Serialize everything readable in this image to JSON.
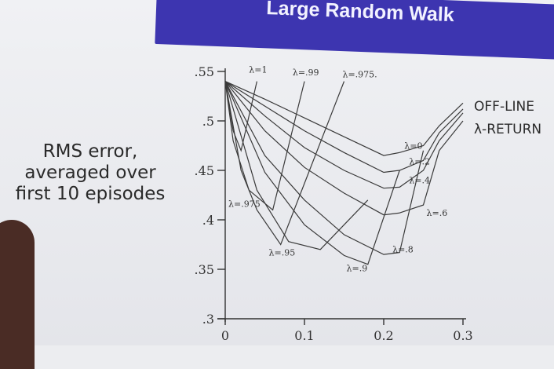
{
  "slide": {
    "title": "Large Random Walk",
    "ylabel": "RMS error,\naveraged over\nfirst 10 episodes",
    "legend_title_1": "OFF-LINE",
    "legend_title_2": "λ-RETURN"
  },
  "chart_data": {
    "type": "line",
    "title": "",
    "xlabel": "",
    "ylabel": "RMS error, averaged over first 10 episodes",
    "xlim": [
      0,
      0.3
    ],
    "ylim": [
      0.3,
      0.55
    ],
    "x_ticks": [
      {
        "value": 0,
        "label": "0"
      },
      {
        "value": 0.1,
        "label": "0.1"
      },
      {
        "value": 0.2,
        "label": "0.2"
      },
      {
        "value": 0.3,
        "label": "0.3"
      }
    ],
    "y_ticks": [
      {
        "value": 0.3,
        "label": ".3"
      },
      {
        "value": 0.35,
        "label": ".35"
      },
      {
        "value": 0.4,
        "label": ".4"
      },
      {
        "value": 0.45,
        "label": ".45"
      },
      {
        "value": 0.5,
        "label": ".5"
      },
      {
        "value": 0.55,
        "label": ".55"
      }
    ],
    "grid": false,
    "series": [
      {
        "name": "λ=0",
        "x": [
          0,
          0.05,
          0.1,
          0.15,
          0.2,
          0.22,
          0.25,
          0.27,
          0.3
        ],
        "y": [
          0.54,
          0.522,
          0.503,
          0.484,
          0.465,
          0.468,
          0.475,
          0.495,
          0.518
        ]
      },
      {
        "name": "λ=.2",
        "x": [
          0,
          0.05,
          0.1,
          0.15,
          0.2,
          0.22,
          0.25,
          0.27,
          0.3
        ],
        "y": [
          0.54,
          0.515,
          0.49,
          0.468,
          0.448,
          0.45,
          0.46,
          0.488,
          0.512
        ]
      },
      {
        "name": "λ=.4",
        "x": [
          0,
          0.05,
          0.1,
          0.15,
          0.2,
          0.22,
          0.25,
          0.27,
          0.3
        ],
        "y": [
          0.54,
          0.505,
          0.473,
          0.45,
          0.432,
          0.433,
          0.45,
          0.48,
          0.508
        ]
      },
      {
        "name": "λ=.6",
        "x": [
          0,
          0.05,
          0.1,
          0.15,
          0.2,
          0.22,
          0.25,
          0.27,
          0.3
        ],
        "y": [
          0.54,
          0.49,
          0.453,
          0.427,
          0.405,
          0.407,
          0.415,
          0.47,
          0.5
        ]
      },
      {
        "name": "λ=.8",
        "x": [
          0,
          0.05,
          0.1,
          0.15,
          0.2,
          0.22,
          0.25
        ],
        "y": [
          0.54,
          0.465,
          0.42,
          0.385,
          0.365,
          0.367,
          0.47
        ]
      },
      {
        "name": "λ=.9",
        "x": [
          0,
          0.05,
          0.1,
          0.15,
          0.18,
          0.22
        ],
        "y": [
          0.54,
          0.448,
          0.395,
          0.364,
          0.355,
          0.45
        ]
      },
      {
        "name": "λ=.95",
        "x": [
          0,
          0.04,
          0.08,
          0.12,
          0.18
        ],
        "y": [
          0.54,
          0.43,
          0.378,
          0.37,
          0.42
        ]
      },
      {
        "name": "λ=.975",
        "x": [
          0,
          0.02,
          0.04,
          0.07,
          0.15
        ],
        "y": [
          0.54,
          0.45,
          0.41,
          0.375,
          0.54
        ]
      },
      {
        "name": "λ=.99",
        "x": [
          0,
          0.01,
          0.03,
          0.06,
          0.1
        ],
        "y": [
          0.54,
          0.48,
          0.43,
          0.41,
          0.54
        ]
      },
      {
        "name": "λ=1",
        "x": [
          0,
          0.01,
          0.02,
          0.04
        ],
        "y": [
          0.54,
          0.49,
          0.47,
          0.54
        ]
      }
    ],
    "curve_labels": [
      {
        "text": "λ=1",
        "x": 0.03,
        "y": 0.549
      },
      {
        "text": "λ=.99",
        "x": 0.085,
        "y": 0.546
      },
      {
        "text": "λ=.975.",
        "x": 0.148,
        "y": 0.544
      },
      {
        "text": "λ=0",
        "x": 0.226,
        "y": 0.472
      },
      {
        "text": "λ=.2",
        "x": 0.232,
        "y": 0.456
      },
      {
        "text": "λ=.4",
        "x": 0.232,
        "y": 0.437
      },
      {
        "text": "λ=.6",
        "x": 0.254,
        "y": 0.404
      },
      {
        "text": "λ=.8",
        "x": 0.211,
        "y": 0.367
      },
      {
        "text": "λ=.9",
        "x": 0.153,
        "y": 0.348
      },
      {
        "text": "λ=.95",
        "x": 0.055,
        "y": 0.364
      },
      {
        "text": "λ=.975",
        "x": 0.004,
        "y": 0.413
      }
    ]
  }
}
